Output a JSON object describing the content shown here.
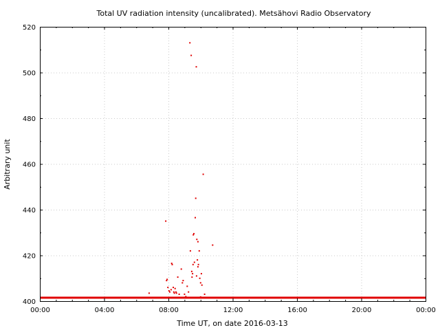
{
  "chart_data": {
    "type": "scatter",
    "title": "Total UV radiation intensity (uncalibrated). Metsähovi Radio Observatory",
    "xlabel": "Time UT, on date 2016-03-13",
    "ylabel": "Arbitrary unit",
    "xlim": [
      "00:00",
      "24:00"
    ],
    "ylim": [
      400,
      520
    ],
    "x_ticks": [
      "00:00",
      "04:00",
      "08:00",
      "12:00",
      "16:00",
      "20:00",
      "00:00"
    ],
    "y_ticks": [
      400,
      420,
      440,
      460,
      480,
      500,
      520
    ],
    "grid": true,
    "color": "#e00000",
    "baseline": {
      "value": 401.5,
      "from": "00:00",
      "to": "24:00"
    },
    "series": [
      {
        "x": [
          "06:48",
          "07:50",
          "07:53",
          "07:55",
          "08:02",
          "08:05",
          "08:10",
          "08:12",
          "08:14",
          "08:18",
          "08:20",
          "08:22",
          "08:25",
          "08:28",
          "08:35",
          "08:40",
          "08:48",
          "08:52",
          "08:55",
          "09:00",
          "09:10",
          "09:15",
          "09:20",
          "09:25",
          "09:27",
          "09:30",
          "09:32",
          "09:35",
          "09:37",
          "09:40",
          "09:42",
          "09:44",
          "09:46",
          "09:48",
          "09:50",
          "09:52",
          "09:55",
          "09:57",
          "10:00",
          "10:03",
          "10:05",
          "10:10",
          "10:15",
          "10:45",
          "09:22",
          "09:33",
          "09:45",
          "09:28",
          "07:58",
          "08:30",
          "09:05",
          "09:50",
          "10:00"
        ],
        "y": [
          403.5,
          435,
          409,
          409.5,
          404.5,
          404,
          405,
          416.5,
          416,
          406,
          404,
          403.5,
          405.5,
          404,
          410.5,
          403,
          414,
          408,
          409,
          403,
          406.5,
          404,
          513,
          507.5,
          413,
          412,
          416,
          429.5,
          417,
          436.5,
          445,
          502.5,
          427,
          418,
          426,
          416,
          422,
          410,
          408,
          412,
          407,
          455.5,
          403,
          424.5,
          422,
          429,
          411,
          410.5,
          406,
          403.5,
          402,
          415,
          401.8
        ]
      }
    ]
  }
}
